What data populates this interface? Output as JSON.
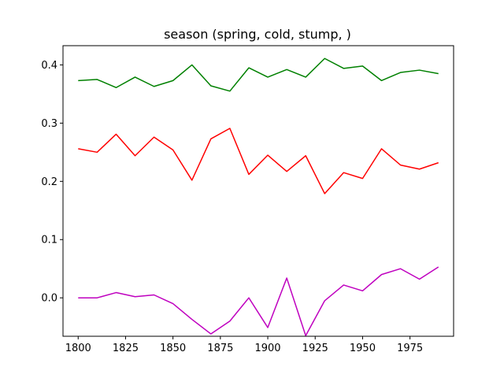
{
  "chart_data": {
    "type": "line",
    "title": "season (spring, cold, stump, )",
    "xlabel": "",
    "ylabel": "",
    "xlim": [
      1792,
      1998
    ],
    "ylim": [
      -0.066,
      0.433
    ],
    "xticks": [
      1800,
      1825,
      1850,
      1875,
      1900,
      1925,
      1950,
      1975
    ],
    "yticks": [
      0.0,
      0.1,
      0.2,
      0.3,
      0.4
    ],
    "xtick_labels": [
      "1800",
      "1825",
      "1850",
      "1875",
      "1900",
      "1925",
      "1950",
      "1975"
    ],
    "ytick_labels": [
      "0.0",
      "0.1",
      "0.2",
      "0.3",
      "0.4"
    ],
    "grid": false,
    "x": [
      1800,
      1810,
      1820,
      1830,
      1840,
      1850,
      1860,
      1870,
      1880,
      1890,
      1900,
      1910,
      1920,
      1930,
      1940,
      1950,
      1960,
      1970,
      1980,
      1990
    ],
    "series": [
      {
        "color": "#008000",
        "values": [
          0.373,
          0.375,
          0.361,
          0.379,
          0.363,
          0.373,
          0.4,
          0.364,
          0.355,
          0.395,
          0.379,
          0.392,
          0.379,
          0.411,
          0.394,
          0.398,
          0.373,
          0.387,
          0.391,
          0.385
        ]
      },
      {
        "color": "#ff0000",
        "values": [
          0.256,
          0.25,
          0.281,
          0.244,
          0.276,
          0.254,
          0.202,
          0.273,
          0.291,
          0.212,
          0.245,
          0.217,
          0.244,
          0.179,
          0.215,
          0.205,
          0.256,
          0.228,
          0.221,
          0.232
        ]
      },
      {
        "color": "#bf00bf",
        "values": [
          0.0,
          0.0,
          0.009,
          0.002,
          0.005,
          -0.01,
          -0.037,
          -0.062,
          -0.04,
          0.0,
          -0.051,
          0.034,
          -0.065,
          -0.005,
          0.022,
          0.012,
          0.04,
          0.05,
          0.032,
          0.053
        ]
      }
    ]
  }
}
